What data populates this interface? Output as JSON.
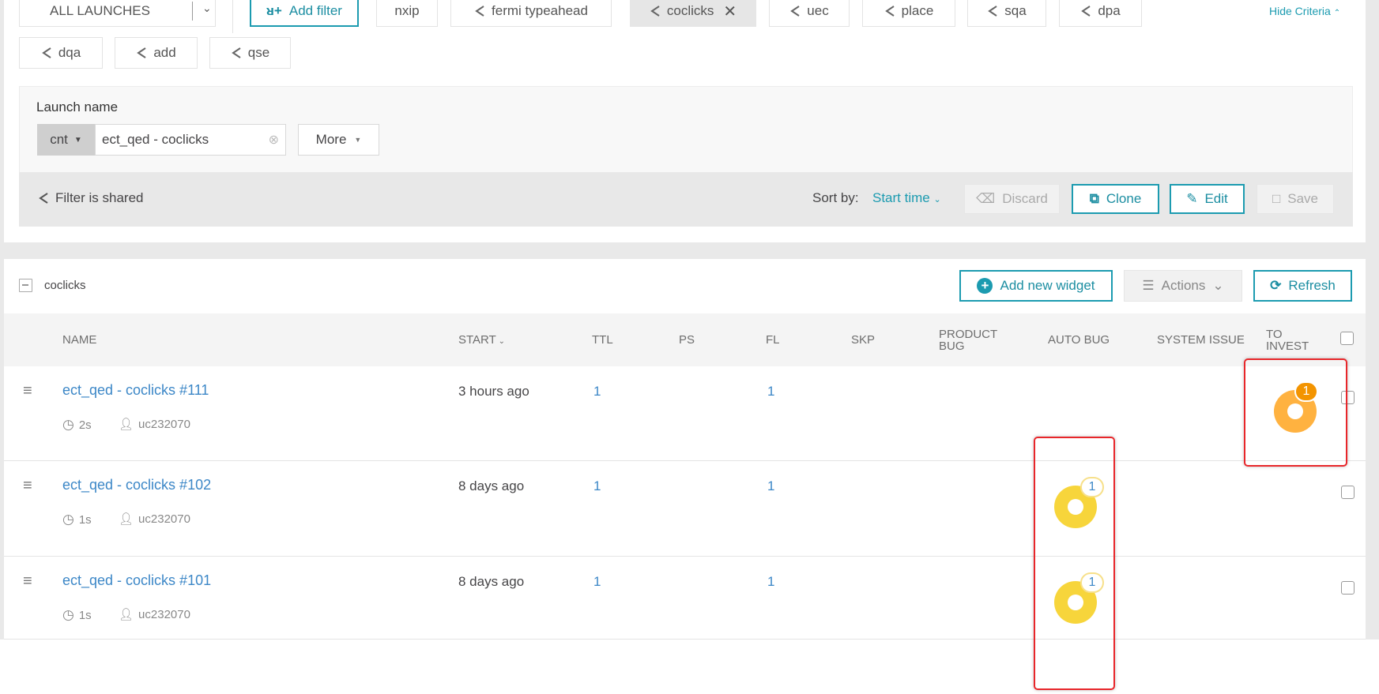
{
  "filters_bar": {
    "launches_select": "ALL LAUNCHES",
    "add_filter": "Add filter",
    "filters": [
      {
        "label": "nxip",
        "shared": false,
        "active": false
      },
      {
        "label": "fermi typeahead",
        "shared": true,
        "active": false
      },
      {
        "label": "coclicks",
        "shared": true,
        "active": true
      },
      {
        "label": "uec",
        "shared": true,
        "active": false
      },
      {
        "label": "place",
        "shared": true,
        "active": false
      },
      {
        "label": "sqa",
        "shared": true,
        "active": false
      },
      {
        "label": "dpa",
        "shared": true,
        "active": false
      },
      {
        "label": "dqa",
        "shared": true,
        "active": false
      },
      {
        "label": "add",
        "shared": true,
        "active": false
      },
      {
        "label": "qse",
        "shared": true,
        "active": false
      }
    ],
    "hide_criteria": "Hide Criteria"
  },
  "criteria": {
    "label": "Launch name",
    "condition": "cnt",
    "value": "ect_qed - coclicks",
    "more": "More",
    "shared_text": "Filter is shared",
    "sort_by_label": "Sort by:",
    "sort_by_value": "Start time",
    "discard": "Discard",
    "clone": "Clone",
    "edit": "Edit",
    "save": "Save"
  },
  "widget_bar": {
    "filter_name": "coclicks",
    "add_widget": "Add new widget",
    "actions": "Actions",
    "refresh": "Refresh"
  },
  "table": {
    "columns": [
      "NAME",
      "START",
      "TTL",
      "PS",
      "FL",
      "SKP",
      "PRODUCT BUG",
      "AUTO BUG",
      "SYSTEM ISSUE",
      "TO INVEST"
    ],
    "rows": [
      {
        "name": "ect_qed - coclicks #111",
        "duration": "2s",
        "owner": "uc232070",
        "start": "3 hours ago",
        "ttl": "1",
        "fl": "1",
        "to_invest": "1"
      },
      {
        "name": "ect_qed - coclicks #102",
        "duration": "1s",
        "owner": "uc232070",
        "start": "8 days ago",
        "ttl": "1",
        "fl": "1",
        "auto_bug": "1"
      },
      {
        "name": "ect_qed - coclicks #101",
        "duration": "1s",
        "owner": "uc232070",
        "start": "8 days ago",
        "ttl": "1",
        "fl": "1",
        "auto_bug": "1"
      }
    ]
  },
  "colors": {
    "accent": "#1c9bb0",
    "link": "#3c87c7",
    "to_invest": "#ffb240",
    "to_invest_badge": "#f39400",
    "auto_bug": "#f7d53b",
    "highlight": "#e8262a"
  }
}
